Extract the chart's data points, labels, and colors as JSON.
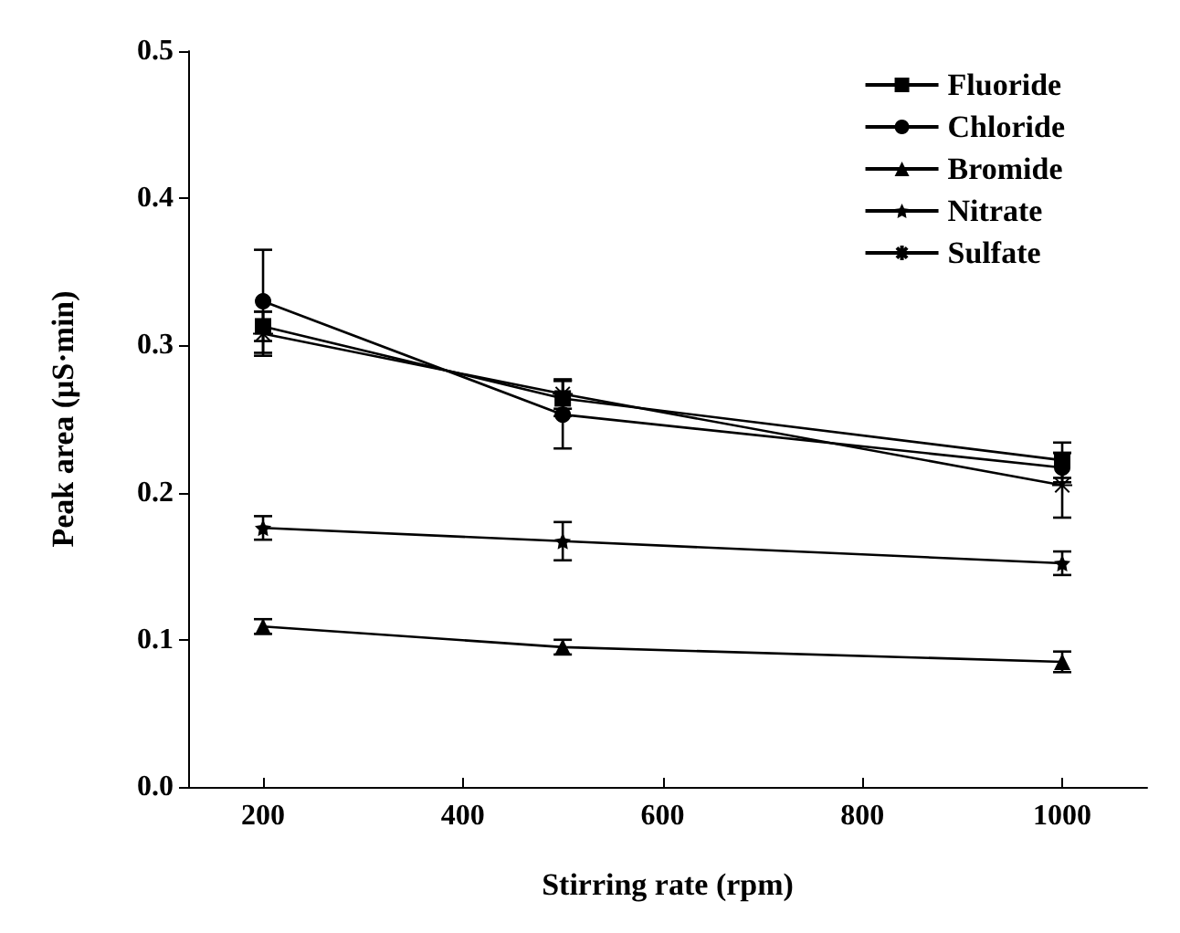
{
  "chart_data": {
    "type": "line",
    "xlabel": "Stirring rate (rpm)",
    "ylabel": "Peak area (μS·min)",
    "x": [
      200,
      500,
      1000
    ],
    "xlim": [
      125,
      1085
    ],
    "xticks": [
      200,
      400,
      600,
      800,
      1000
    ],
    "ylim": [
      0,
      0.5
    ],
    "yticks": [
      {
        "value": 0,
        "label": "0.0"
      },
      {
        "value": 0.1,
        "label": "0.1"
      },
      {
        "value": 0.2,
        "label": "0.2"
      },
      {
        "value": 0.3,
        "label": "0.3"
      },
      {
        "value": 0.4,
        "label": "0.4"
      },
      {
        "value": 0.5,
        "label": "0.5"
      }
    ],
    "grid": false,
    "legend": "top right",
    "series": [
      {
        "name": "Fluoride",
        "color": "#000000",
        "marker": "square",
        "values": [
          0.313,
          0.264,
          0.222
        ],
        "errors": [
          0.01,
          0.012,
          0.012
        ]
      },
      {
        "name": "Chloride",
        "color": "#000000",
        "marker": "circle",
        "values": [
          0.33,
          0.253,
          0.217
        ],
        "errors": [
          0.035,
          0.023,
          0.01
        ]
      },
      {
        "name": "Bromide",
        "color": "#000000",
        "marker": "triangle",
        "values": [
          0.109,
          0.095,
          0.085
        ],
        "errors": [
          0.005,
          0.005,
          0.007
        ]
      },
      {
        "name": "Nitrate",
        "color": "#000000",
        "marker": "star",
        "values": [
          0.176,
          0.167,
          0.152
        ],
        "errors": [
          0.008,
          0.013,
          0.008
        ]
      },
      {
        "name": "Sulfate",
        "color": "#000000",
        "marker": "cross",
        "values": [
          0.308,
          0.267,
          0.205
        ],
        "errors": [
          0.015,
          0.01,
          0.022
        ]
      }
    ]
  }
}
